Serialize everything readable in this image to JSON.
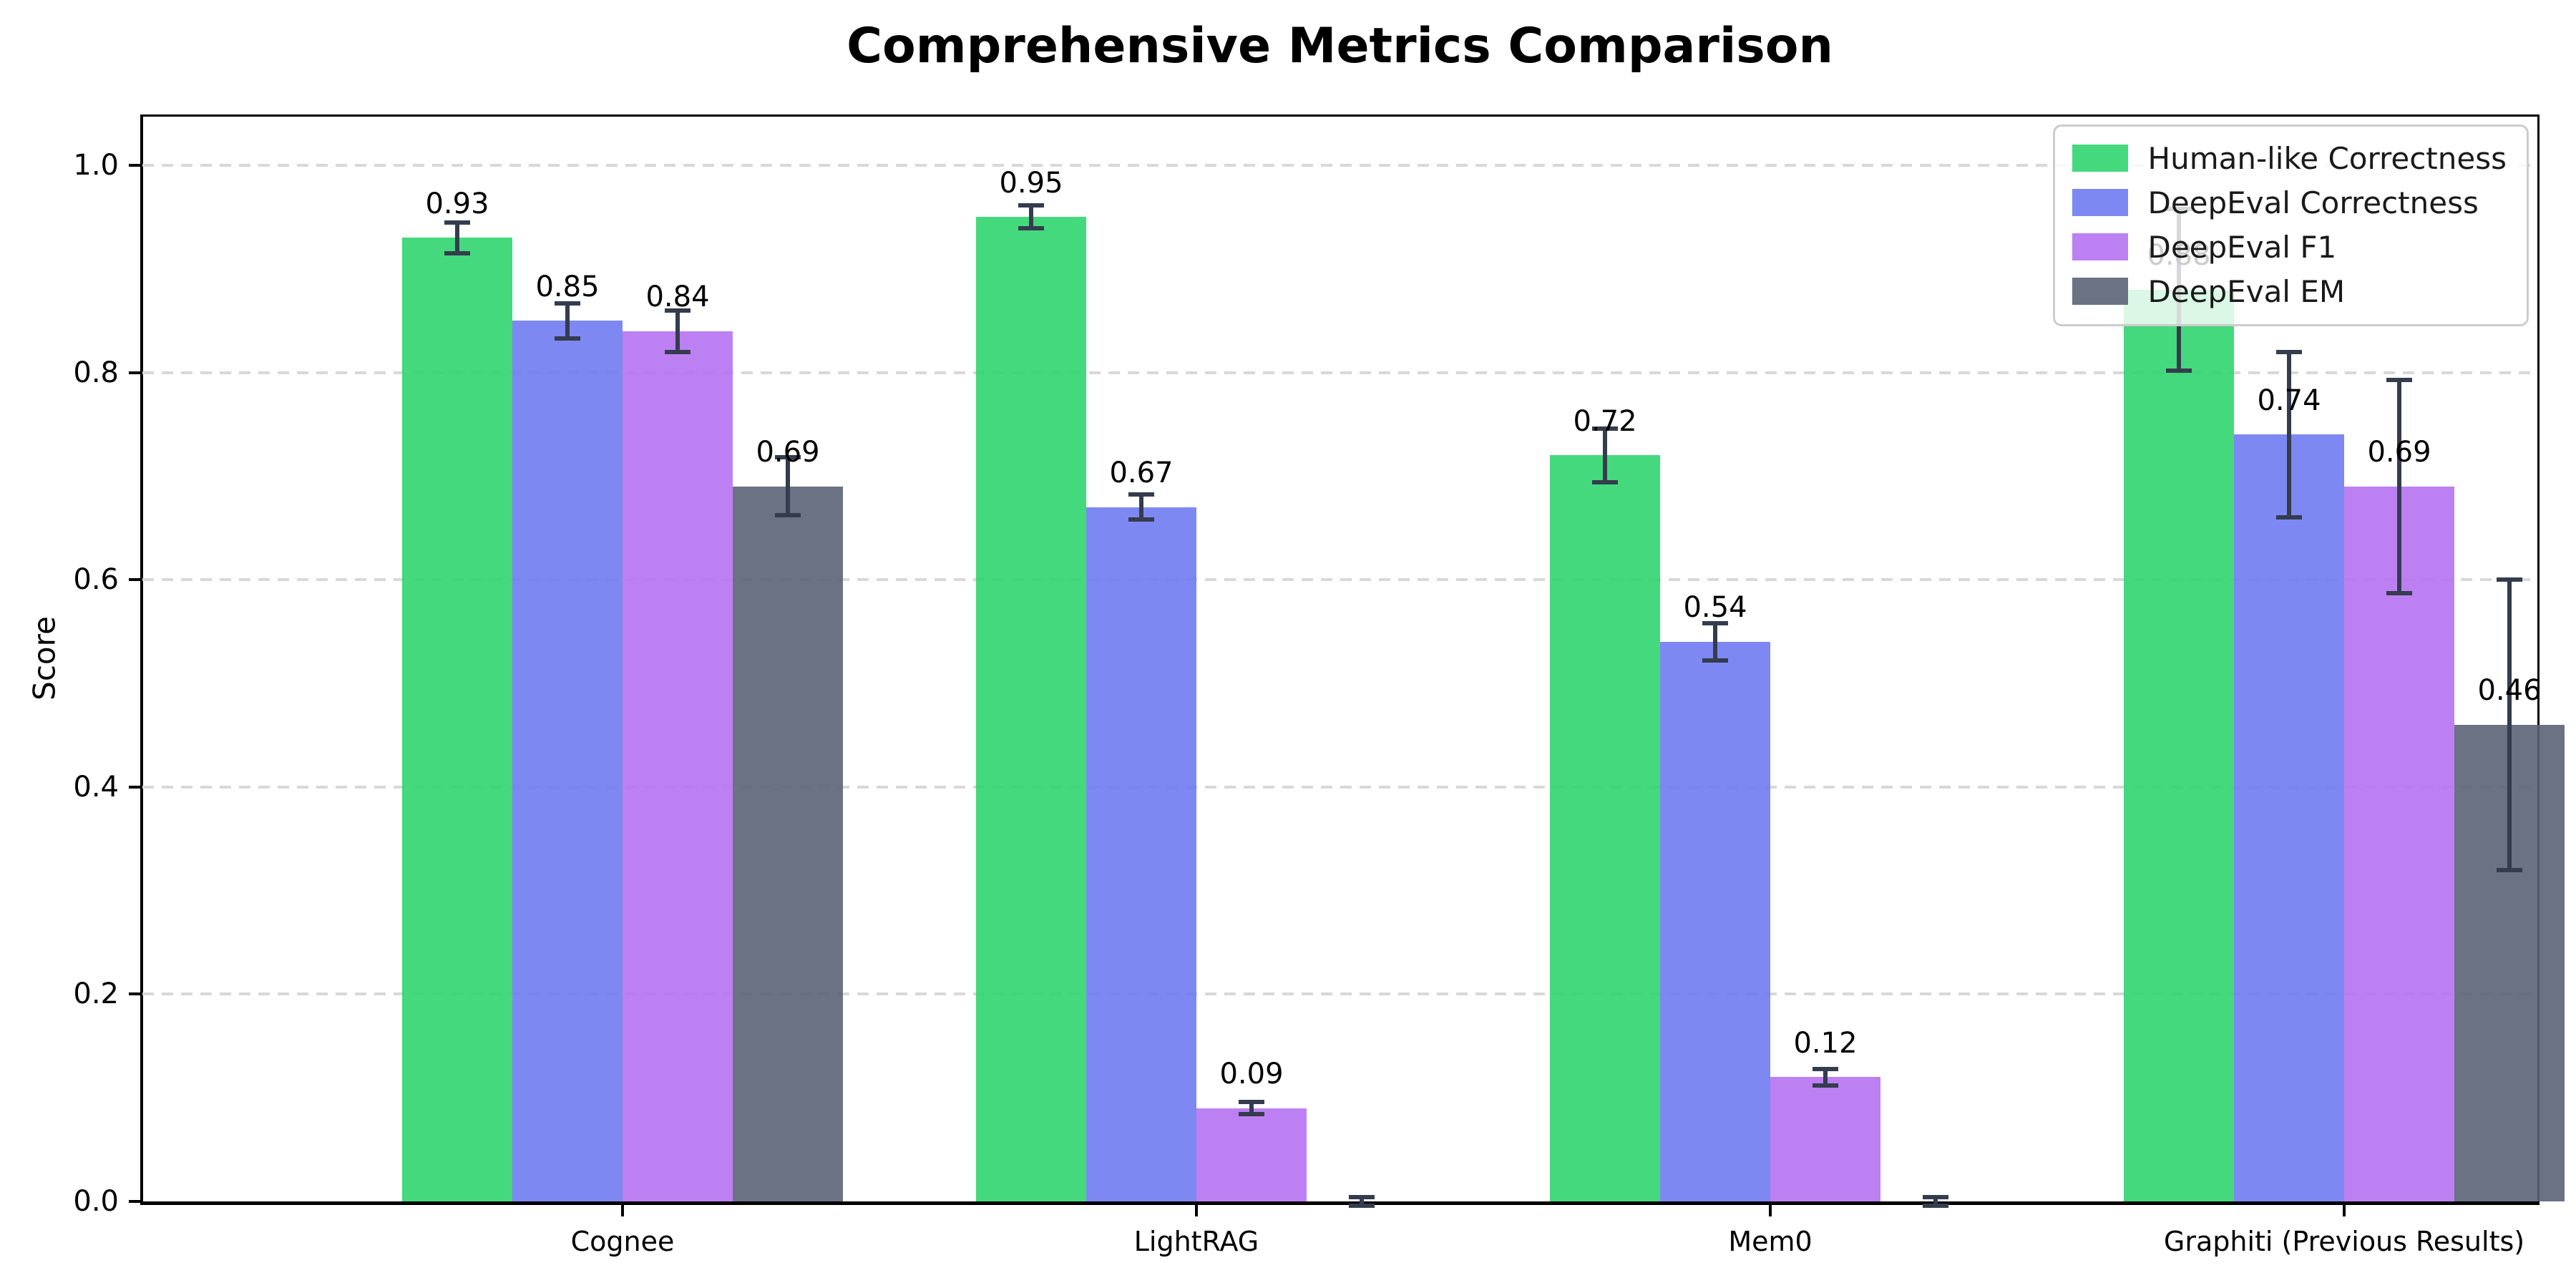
{
  "chart_data": {
    "type": "bar",
    "title": "Comprehensive Metrics Comparison",
    "xlabel": "",
    "ylabel": "Score",
    "categories": [
      "Cognee",
      "LightRAG",
      "Mem0",
      "Graphiti (Previous Results)"
    ],
    "series": [
      {
        "name": "Human-like Correctness",
        "color": "#31d570",
        "values": [
          0.93,
          0.95,
          0.72,
          0.88
        ],
        "errors": [
          0.015,
          0.011,
          0.026,
          0.078
        ],
        "labels": [
          "0.93",
          "0.95",
          "0.72",
          "0.88"
        ]
      },
      {
        "name": "DeepEval Correctness",
        "color": "#707bf1",
        "values": [
          0.85,
          0.67,
          0.54,
          0.74
        ],
        "errors": [
          0.017,
          0.012,
          0.018,
          0.08
        ],
        "labels": [
          "0.85",
          "0.67",
          "0.54",
          "0.74"
        ]
      },
      {
        "name": "DeepEval F1",
        "color": "#b672f1",
        "values": [
          0.84,
          0.09,
          0.12,
          0.69
        ],
        "errors": [
          0.02,
          0.006,
          0.008,
          0.103
        ],
        "labels": [
          "0.84",
          "0.09",
          "0.12",
          "0.69"
        ]
      },
      {
        "name": "DeepEval EM",
        "color": "#5b6375",
        "values": [
          0.69,
          0.0,
          0.0,
          0.46
        ],
        "errors": [
          0.028,
          0.004,
          0.004,
          0.14
        ],
        "labels": [
          "0.69",
          null,
          null,
          "0.46"
        ]
      }
    ],
    "yticks": [
      0.0,
      0.2,
      0.4,
      0.6,
      0.8,
      1.0
    ],
    "ytick_labels": [
      "0.0",
      "0.2",
      "0.4",
      "0.6",
      "0.8",
      "1.0"
    ],
    "ylim": [
      0,
      1.05
    ],
    "grid": {
      "axis": "y",
      "style": "dashed",
      "color": "#d8d8d8"
    },
    "legend_position": "upper right",
    "error_bar_color": "#343c4e",
    "background_color": "#ffffff"
  }
}
